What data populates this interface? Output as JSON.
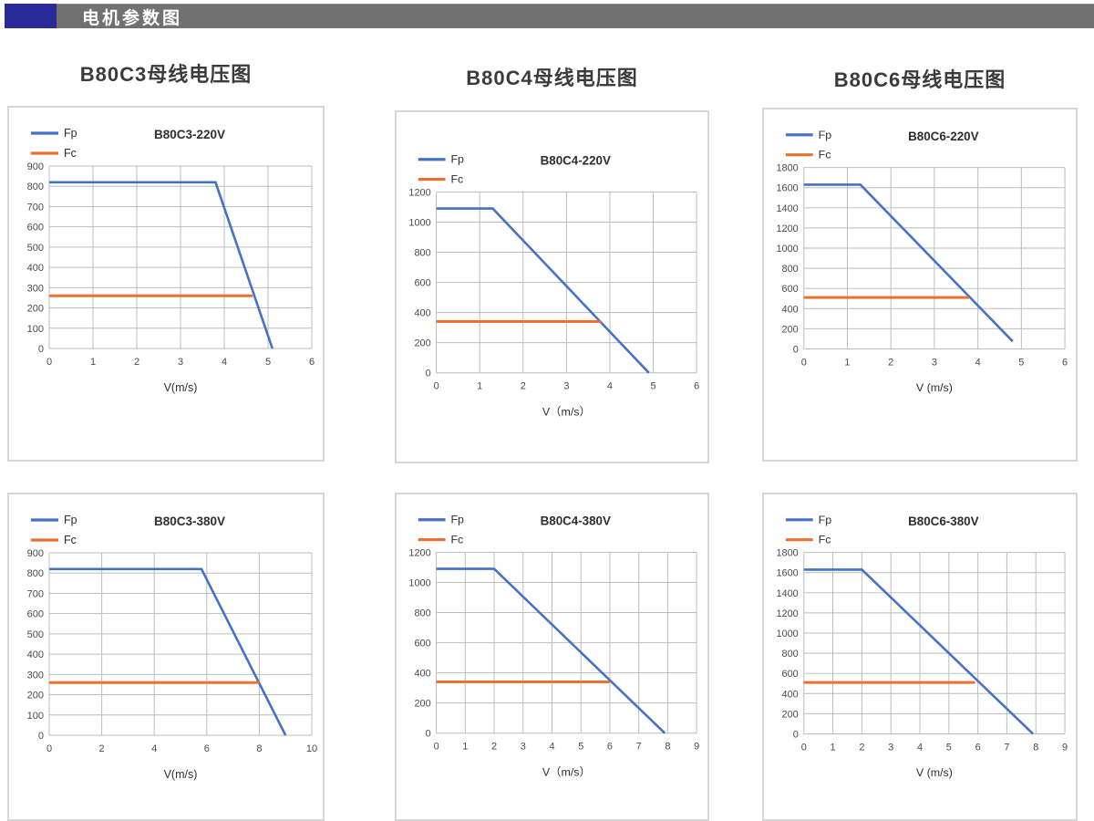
{
  "header": {
    "title": "电机参数图",
    "accent_color": "#2A2A99",
    "bar_color": "#717171"
  },
  "column_titles": [
    "B80C3母线电压图",
    "B80C4母线电压图",
    "B80C6母线电压图"
  ],
  "colors": {
    "fp": "#4472C4",
    "fc": "#ED7031",
    "grid": "#bdbdbd",
    "axis_text": "#4a4a4a",
    "title_text": "#2f2f2f"
  },
  "chart_data": [
    {
      "type": "line",
      "title": "B80C3-220V",
      "xlabel": "V(m/s)",
      "xlim": [
        0,
        6
      ],
      "xstep": 1,
      "ylim": [
        0,
        900
      ],
      "ystep": 100,
      "legend_position": "top-left",
      "grid": true,
      "series": [
        {
          "name": "Fp",
          "color_key": "fp",
          "points": [
            [
              0,
              820
            ],
            [
              3.8,
              820
            ],
            [
              5.1,
              0
            ]
          ]
        },
        {
          "name": "Fc",
          "color_key": "fc",
          "points": [
            [
              0,
              260
            ],
            [
              4.65,
              260
            ]
          ]
        }
      ]
    },
    {
      "type": "line",
      "title": "B80C4-220V",
      "xlabel": "V（m/s）",
      "xlim": [
        0,
        6
      ],
      "xstep": 1,
      "ylim": [
        0,
        1200
      ],
      "ystep": 200,
      "legend_position": "top-left",
      "grid": true,
      "series": [
        {
          "name": "Fp",
          "color_key": "fp",
          "points": [
            [
              0,
              1090
            ],
            [
              1.3,
              1090
            ],
            [
              4.9,
              0
            ]
          ]
        },
        {
          "name": "Fc",
          "color_key": "fc",
          "points": [
            [
              0,
              340
            ],
            [
              3.8,
              340
            ]
          ]
        }
      ]
    },
    {
      "type": "line",
      "title": "B80C6-220V",
      "xlabel": "V (m/s)",
      "xlim": [
        0,
        6
      ],
      "xstep": 1,
      "ylim": [
        0,
        1800
      ],
      "ystep": 200,
      "legend_position": "top-left",
      "grid": true,
      "series": [
        {
          "name": "Fp",
          "color_key": "fp",
          "points": [
            [
              0,
              1630
            ],
            [
              1.3,
              1630
            ],
            [
              4.8,
              75
            ]
          ]
        },
        {
          "name": "Fc",
          "color_key": "fc",
          "points": [
            [
              0,
              510
            ],
            [
              3.8,
              510
            ]
          ]
        }
      ]
    },
    {
      "type": "line",
      "title": "B80C3-380V",
      "xlabel": "V(m/s)",
      "xlim": [
        0,
        10
      ],
      "xstep": 2,
      "ylim": [
        0,
        900
      ],
      "ystep": 100,
      "legend_position": "top-left",
      "grid": true,
      "series": [
        {
          "name": "Fp",
          "color_key": "fp",
          "points": [
            [
              0,
              820
            ],
            [
              5.8,
              820
            ],
            [
              9,
              0
            ]
          ]
        },
        {
          "name": "Fc",
          "color_key": "fc",
          "points": [
            [
              0,
              260
            ],
            [
              8,
              260
            ]
          ]
        }
      ]
    },
    {
      "type": "line",
      "title": "B80C4-380V",
      "xlabel": "V（m/s）",
      "xlim": [
        0,
        9
      ],
      "xstep": 1,
      "ylim": [
        0,
        1200
      ],
      "ystep": 200,
      "legend_position": "top-left",
      "grid": true,
      "series": [
        {
          "name": "Fp",
          "color_key": "fp",
          "points": [
            [
              0,
              1090
            ],
            [
              2,
              1090
            ],
            [
              7.9,
              0
            ]
          ]
        },
        {
          "name": "Fc",
          "color_key": "fc",
          "points": [
            [
              0,
              340
            ],
            [
              6,
              340
            ]
          ]
        }
      ]
    },
    {
      "type": "line",
      "title": "B80C6-380V",
      "xlabel": "V (m/s)",
      "xlim": [
        0,
        9
      ],
      "xstep": 1,
      "ylim": [
        0,
        1800
      ],
      "ystep": 200,
      "legend_position": "top-left",
      "grid": true,
      "series": [
        {
          "name": "Fp",
          "color_key": "fp",
          "points": [
            [
              0,
              1630
            ],
            [
              2,
              1630
            ],
            [
              7.9,
              0
            ]
          ]
        },
        {
          "name": "Fc",
          "color_key": "fc",
          "points": [
            [
              0,
              510
            ],
            [
              5.9,
              510
            ]
          ]
        }
      ]
    }
  ]
}
